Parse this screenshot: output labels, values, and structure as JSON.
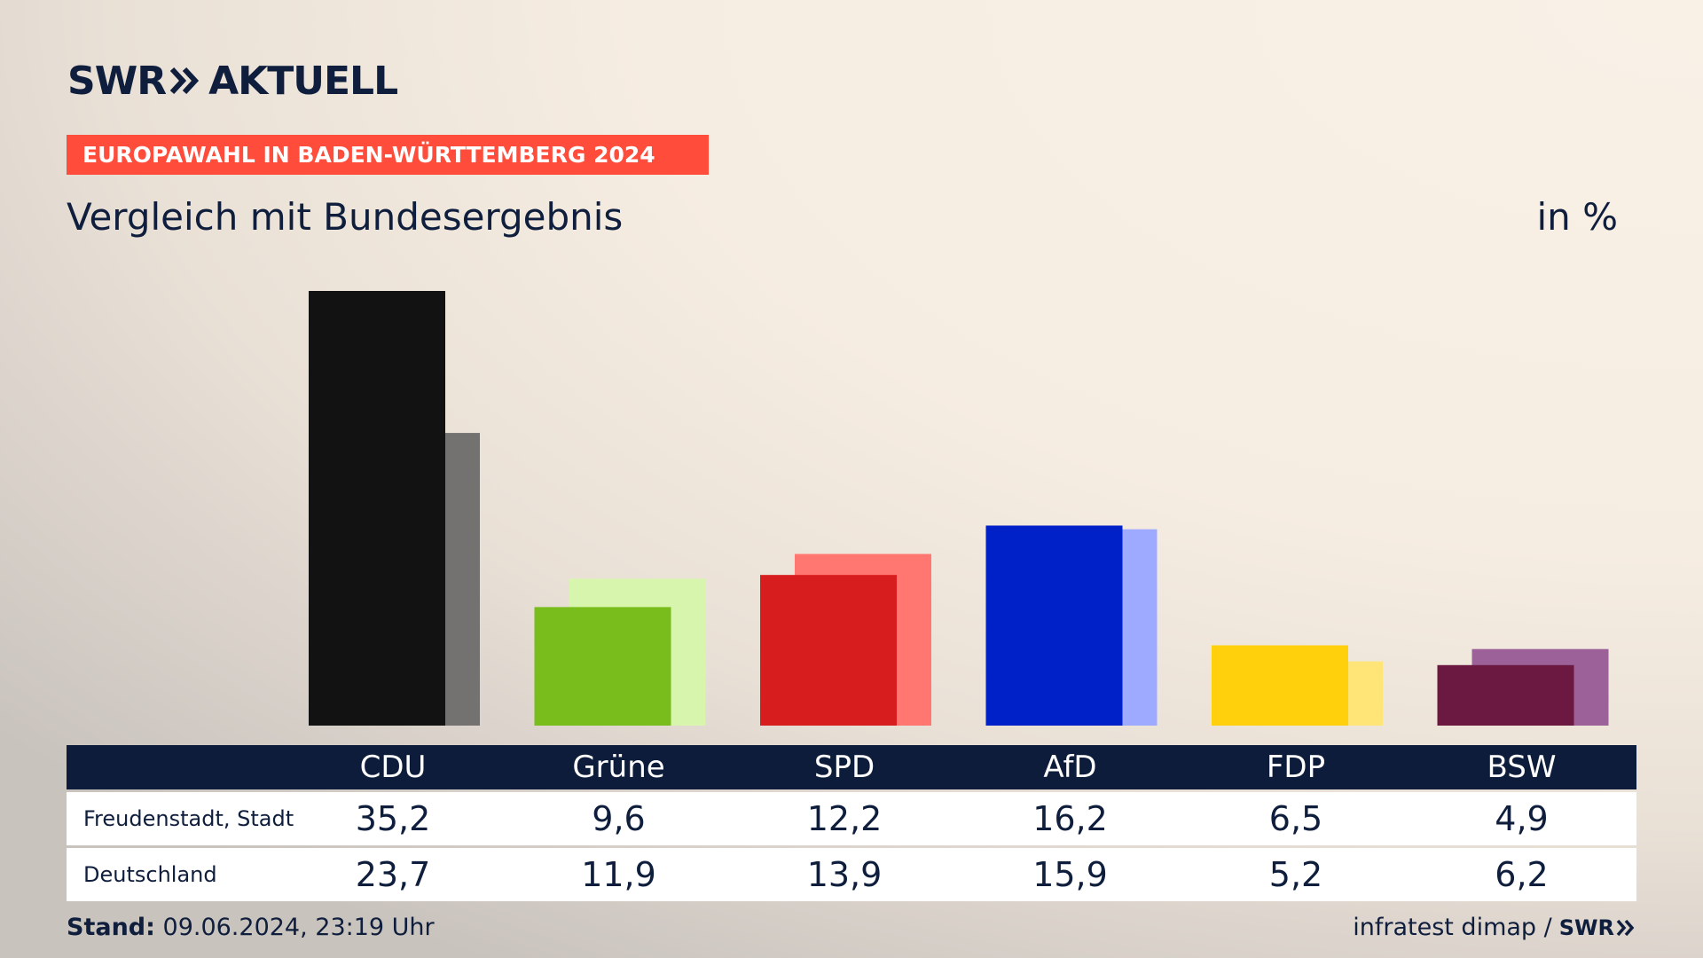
{
  "brand": {
    "logo_text_1": "SWR",
    "logo_text_2": "AKTUELL"
  },
  "banner": "EUROPAWAHL IN BADEN-WÜRTTEMBERG 2024",
  "subtitle": "Vergleich mit Bundesergebnis",
  "unit": "in %",
  "footer": {
    "stand_label": "Stand:",
    "stand_value": "09.06.2024, 23:19 Uhr",
    "source": "infratest dimap /",
    "source_brand": "SWR"
  },
  "chart_data": {
    "type": "bar",
    "categories": [
      "CDU",
      "Grüne",
      "SPD",
      "AfD",
      "FDP",
      "BSW"
    ],
    "series": [
      {
        "name": "Freudenstadt, Stadt",
        "values": [
          35.2,
          9.6,
          12.2,
          16.2,
          6.5,
          4.9
        ]
      },
      {
        "name": "Deutschland",
        "values": [
          23.7,
          11.9,
          13.9,
          15.9,
          5.2,
          6.2
        ]
      }
    ],
    "value_labels": [
      [
        "35,2",
        "9,6",
        "12,2",
        "16,2",
        "6,5",
        "4,9"
      ],
      [
        "23,7",
        "11,9",
        "13,9",
        "15,9",
        "5,2",
        "6,2"
      ]
    ],
    "colors_primary": [
      "#121212",
      "#79bd1d",
      "#d71d1d",
      "#0020c8",
      "#ffd00b",
      "#6b1940"
    ],
    "colors_secondary": [
      "#737270",
      "#d8f5ae",
      "#ff7770",
      "#9eaaff",
      "#ffe478",
      "#9c6199"
    ],
    "ylim": [
      0,
      35.2
    ],
    "grid": false,
    "legend": "table-below"
  }
}
